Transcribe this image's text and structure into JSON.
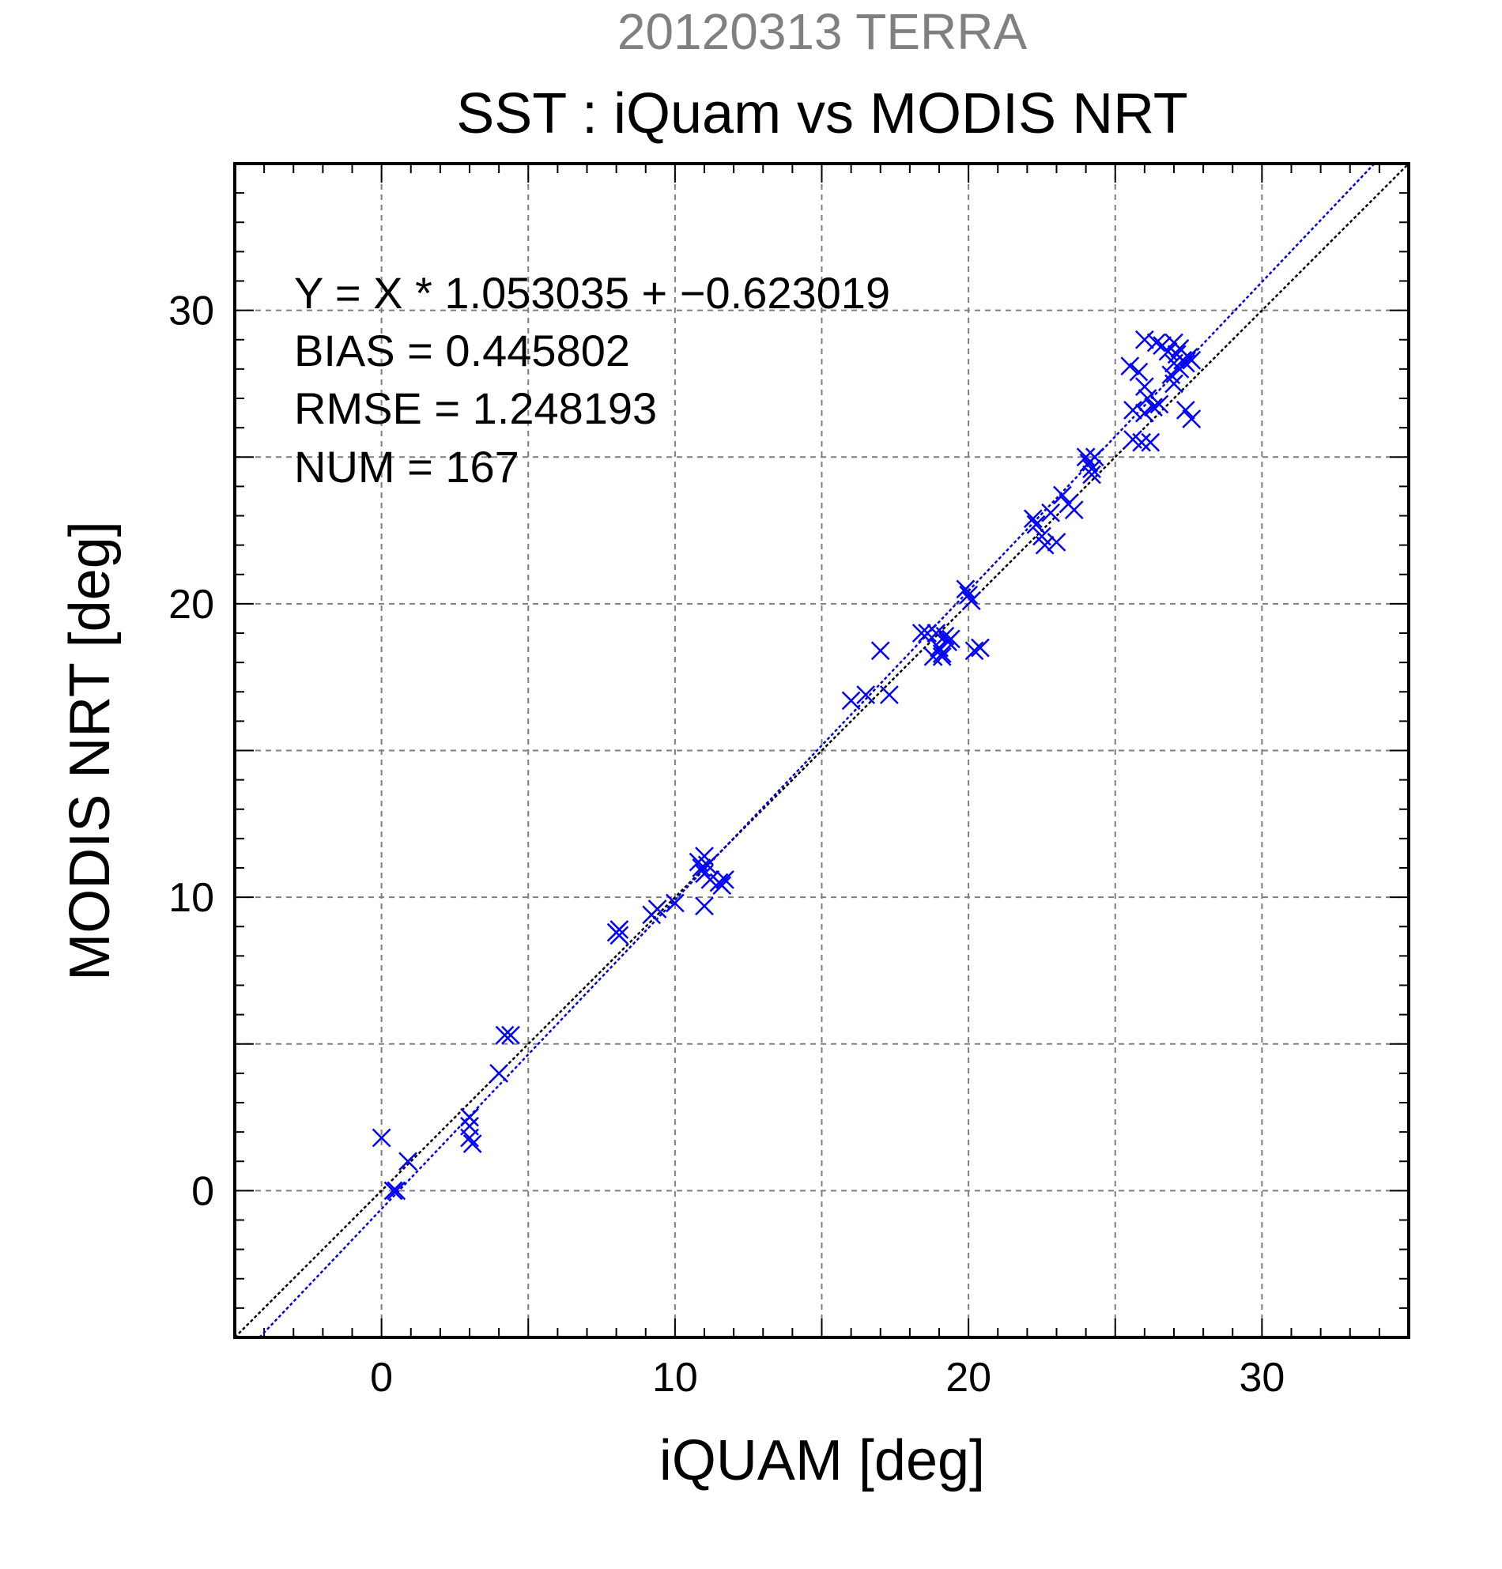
{
  "chart_data": {
    "type": "scatter",
    "title_top": "20120313 TERRA",
    "title": "SST : iQuam vs MODIS NRT",
    "xlabel": "iQUAM [deg]",
    "ylabel": "MODIS NRT [deg]",
    "xlim": [
      -5,
      35
    ],
    "ylim": [
      -5,
      35
    ],
    "x_ticks": [
      0,
      10,
      20,
      30
    ],
    "y_ticks": [
      0,
      10,
      20,
      30
    ],
    "grid": true,
    "stats": [
      "Y = X * 1.053035 + −0.623019",
      "BIAS = 0.445802",
      "RMSE = 1.248193",
      "NUM = 167"
    ],
    "lines": [
      {
        "kind": "one-to-one",
        "slope": 1.0,
        "intercept": 0.0,
        "color": "#000000"
      },
      {
        "kind": "regression-fit",
        "slope": 1.053035,
        "intercept": -0.623019,
        "color": "#0000dd"
      }
    ],
    "colors": {
      "marker": "#0000ff",
      "grid": "#7f7f7f",
      "title_top": "#808080"
    },
    "points": [
      [
        0.0,
        1.8
      ],
      [
        0.4,
        0.0
      ],
      [
        0.5,
        0.0
      ],
      [
        0.9,
        1.0
      ],
      [
        3.0,
        2.5
      ],
      [
        3.0,
        2.2
      ],
      [
        3.0,
        1.8
      ],
      [
        3.1,
        1.6
      ],
      [
        4.0,
        4.0
      ],
      [
        4.2,
        5.3
      ],
      [
        4.4,
        5.3
      ],
      [
        8.0,
        8.8
      ],
      [
        8.1,
        8.9
      ],
      [
        8.1,
        8.7
      ],
      [
        9.2,
        9.4
      ],
      [
        9.4,
        9.6
      ],
      [
        10.0,
        9.8
      ],
      [
        10.8,
        11.2
      ],
      [
        10.9,
        11.0
      ],
      [
        11.0,
        11.4
      ],
      [
        11.0,
        10.8
      ],
      [
        11.1,
        11.1
      ],
      [
        11.0,
        9.7
      ],
      [
        11.2,
        10.6
      ],
      [
        11.5,
        10.5
      ],
      [
        11.6,
        10.4
      ],
      [
        11.7,
        10.6
      ],
      [
        16.0,
        16.7
      ],
      [
        16.5,
        16.9
      ],
      [
        17.0,
        18.4
      ],
      [
        17.3,
        16.9
      ],
      [
        18.4,
        19.0
      ],
      [
        18.6,
        19.0
      ],
      [
        18.8,
        18.2
      ],
      [
        18.9,
        19.0
      ],
      [
        19.0,
        18.5
      ],
      [
        19.1,
        18.2
      ],
      [
        19.2,
        18.9
      ],
      [
        19.3,
        18.7
      ],
      [
        19.4,
        18.8
      ],
      [
        19.1,
        18.3
      ],
      [
        19.9,
        20.5
      ],
      [
        20.0,
        20.3
      ],
      [
        20.1,
        20.1
      ],
      [
        20.2,
        18.4
      ],
      [
        20.4,
        18.5
      ],
      [
        22.2,
        22.9
      ],
      [
        22.3,
        22.7
      ],
      [
        22.5,
        22.3
      ],
      [
        22.6,
        22.0
      ],
      [
        22.8,
        23.1
      ],
      [
        23.0,
        22.1
      ],
      [
        23.2,
        23.7
      ],
      [
        23.4,
        23.4
      ],
      [
        23.6,
        23.2
      ],
      [
        24.0,
        25.0
      ],
      [
        24.1,
        24.8
      ],
      [
        24.2,
        24.6
      ],
      [
        24.3,
        25.0
      ],
      [
        24.2,
        24.4
      ],
      [
        25.5,
        28.1
      ],
      [
        25.6,
        26.6
      ],
      [
        25.6,
        25.6
      ],
      [
        25.8,
        27.9
      ],
      [
        25.9,
        25.5
      ],
      [
        26.0,
        29.0
      ],
      [
        26.0,
        26.5
      ],
      [
        26.0,
        27.4
      ],
      [
        26.1,
        27.0
      ],
      [
        26.2,
        25.5
      ],
      [
        26.3,
        26.7
      ],
      [
        26.4,
        28.9
      ],
      [
        26.5,
        26.8
      ],
      [
        26.6,
        28.8
      ],
      [
        26.8,
        28.6
      ],
      [
        26.9,
        27.8
      ],
      [
        27.0,
        28.2
      ],
      [
        27.0,
        28.9
      ],
      [
        27.0,
        27.5
      ],
      [
        27.1,
        28.5
      ],
      [
        27.2,
        28.7
      ],
      [
        27.2,
        28.0
      ],
      [
        27.3,
        28.3
      ],
      [
        27.4,
        28.2
      ],
      [
        27.5,
        28.4
      ],
      [
        27.6,
        28.3
      ],
      [
        27.4,
        26.6
      ],
      [
        27.6,
        26.3
      ]
    ]
  }
}
